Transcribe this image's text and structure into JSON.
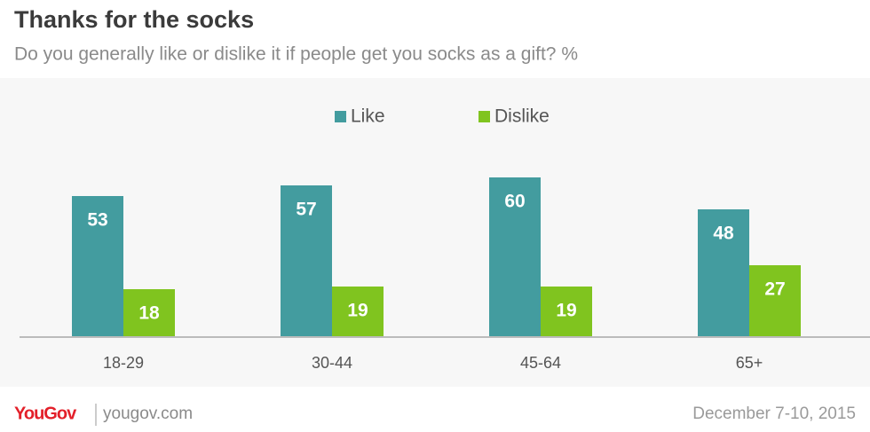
{
  "chart_data": {
    "type": "bar",
    "title": "Thanks for the socks",
    "subtitle": "Do you generally like or dislike it if people get you socks as a gift? %",
    "categories": [
      "18-29",
      "30-44",
      "45-64",
      "65+"
    ],
    "series": [
      {
        "name": "Like",
        "color": "#439c9f",
        "values": [
          53,
          57,
          60,
          48
        ]
      },
      {
        "name": "Dislike",
        "color": "#80c41f",
        "values": [
          18,
          19,
          19,
          27
        ]
      }
    ]
  },
  "footer": {
    "brand": "YouGov",
    "site": "yougov.com",
    "date": "December 7-10, 2015"
  }
}
